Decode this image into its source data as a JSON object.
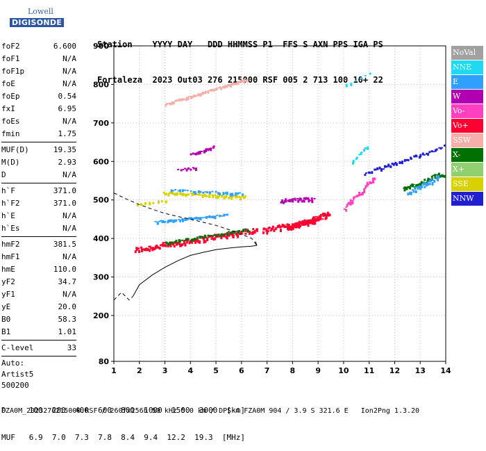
{
  "logo": {
    "line1": "Lowell",
    "line2": "DIGISONDE"
  },
  "header": {
    "line1": "Station    YYYY DAY   DDD HHMMSS P1  FFS S AXN PPS IGA PS",
    "line2": "Fortaleza  2023 Out03 276 215000 RSF 005 2 713 100 10+ 22"
  },
  "params": [
    {
      "k": "foF2",
      "v": "6.600"
    },
    {
      "k": "foF1",
      "v": "N/A"
    },
    {
      "k": "foF1p",
      "v": "N/A"
    },
    {
      "k": "foE",
      "v": "N/A"
    },
    {
      "k": "foEp",
      "v": "0.54"
    },
    {
      "k": "fxI",
      "v": "6.95"
    },
    {
      "k": "foEs",
      "v": "N/A"
    },
    {
      "k": "fmin",
      "v": "1.75"
    }
  ],
  "params2": [
    {
      "k": "MUF(D)",
      "v": "19.35"
    },
    {
      "k": "M(D)",
      "v": "2.93"
    },
    {
      "k": "D",
      "v": "N/A"
    }
  ],
  "params3": [
    {
      "k": "h`F",
      "v": "371.0"
    },
    {
      "k": "h`F2",
      "v": "371.0"
    },
    {
      "k": "h`E",
      "v": "N/A"
    },
    {
      "k": "h`Es",
      "v": "N/A"
    }
  ],
  "params4": [
    {
      "k": "hmF2",
      "v": "381.5"
    },
    {
      "k": "hmF1",
      "v": "N/A"
    },
    {
      "k": "hmE",
      "v": "110.0"
    },
    {
      "k": "yF2",
      "v": "34.7"
    },
    {
      "k": "yF1",
      "v": "N/A"
    },
    {
      "k": "yE",
      "v": "20.0"
    },
    {
      "k": "B0",
      "v": "58.3"
    },
    {
      "k": "B1",
      "v": "1.01"
    }
  ],
  "params5": [
    {
      "k": "C-level",
      "v": "33"
    }
  ],
  "auto": {
    "l1": "Auto:",
    "l2": "Artist5",
    "l3": "500200"
  },
  "legend": [
    {
      "label": "NoVal",
      "color": "#a0a0a0"
    },
    {
      "label": "NNE",
      "color": "#20d8f0"
    },
    {
      "label": "E",
      "color": "#30a0ff"
    },
    {
      "label": "W",
      "color": "#b000b0"
    },
    {
      "label": "Vo-",
      "color": "#ff40c0"
    },
    {
      "label": "Vo+",
      "color": "#ff0030"
    },
    {
      "label": "SSW",
      "color": "#f4b0a8"
    },
    {
      "label": "X-",
      "color": "#007000"
    },
    {
      "label": "X+",
      "color": "#90d070"
    },
    {
      "label": "SSE",
      "color": "#d8d000"
    },
    {
      "label": "NNW",
      "color": "#2020d0"
    }
  ],
  "footer": {
    "line1": "D     100  200  400  600  800  1000  1500  3000  [km]",
    "line2": "MUF   6.9  7.0  7.3  7.8  8.4  9.4  12.2  19.3  [MHz]",
    "line3": "FZA0M_2023276215000.RSF / 260fx256h 50 kHz 5.0 km / DPS-4 FZA0M 904 / 3.9 S 321.6 E   Ion2Png 1.3.20"
  },
  "chart_data": {
    "type": "scatter",
    "xlim": [
      1,
      14
    ],
    "ylim": [
      80,
      900
    ],
    "x_ticks": [
      1,
      2,
      3,
      4,
      5,
      6,
      7,
      8,
      9,
      10,
      11,
      12,
      13,
      14
    ],
    "y_ticks": [
      80,
      200,
      300,
      400,
      500,
      600,
      700,
      800,
      900
    ],
    "grid": true,
    "legend_position": "right",
    "profile": {
      "x": [
        1.75,
        2.0,
        2.5,
        3.0,
        3.5,
        4.0,
        4.5,
        5.0,
        5.5,
        6.0,
        6.4,
        6.6,
        6.55
      ],
      "y": [
        250,
        280,
        305,
        325,
        342,
        356,
        364,
        371,
        375,
        378,
        380,
        382,
        392
      ]
    },
    "profile_extrapolated": {
      "x": [
        1.0,
        1.3,
        1.6,
        1.75
      ],
      "y": [
        240,
        260,
        240,
        250
      ]
    },
    "dashed_upper": {
      "x": [
        1.0,
        1.5,
        2.0,
        2.5,
        3.0,
        3.5,
        4.0,
        4.5,
        5.0,
        5.5,
        6.0,
        6.4,
        6.6
      ],
      "y": [
        518,
        502,
        488,
        476,
        465,
        457,
        450,
        442,
        434,
        423,
        411,
        400,
        382
      ]
    },
    "traces": [
      {
        "series": "Vo+",
        "x": [
          1.8,
          6.6
        ],
        "y": [
          372,
          425
        ],
        "n": 140,
        "width": 7
      },
      {
        "series": "X-",
        "x": [
          3.0,
          6.2
        ],
        "y": [
          390,
          425
        ],
        "n": 40,
        "width": 3
      },
      {
        "series": "Vo+",
        "x": [
          6.8,
          9.0
        ],
        "y": [
          423,
          450
        ],
        "n": 60,
        "width": 6
      },
      {
        "series": "Vo+",
        "x": [
          7.8,
          9.4
        ],
        "y": [
          430,
          465
        ],
        "n": 70,
        "width": 7
      },
      {
        "series": "E",
        "x": [
          2.6,
          5.4
        ],
        "y": [
          445,
          463
        ],
        "n": 45,
        "width": 2
      },
      {
        "series": "SSE",
        "x": [
          2.9,
          6.1
        ],
        "y": [
          520,
          510
        ],
        "n": 55,
        "width": 3
      },
      {
        "series": "E",
        "x": [
          3.2,
          6.0
        ],
        "y": [
          528,
          518
        ],
        "n": 30,
        "width": 2
      },
      {
        "series": "SSW",
        "x": [
          3.0,
          6.2
        ],
        "y": [
          750,
          815
        ],
        "n": 60,
        "width": 2
      },
      {
        "series": "W",
        "x": [
          4.0,
          4.9
        ],
        "y": [
          620,
          640
        ],
        "n": 16,
        "width": 2
      },
      {
        "series": "W",
        "x": [
          3.5,
          4.2
        ],
        "y": [
          580,
          585
        ],
        "n": 10,
        "width": 2
      },
      {
        "series": "W",
        "x": [
          7.5,
          8.8
        ],
        "y": [
          500,
          505
        ],
        "n": 30,
        "width": 4
      },
      {
        "series": "Vo-",
        "x": [
          10.0,
          11.2
        ],
        "y": [
          480,
          560
        ],
        "n": 35,
        "width": 6
      },
      {
        "series": "NNW",
        "x": [
          10.8,
          13.9
        ],
        "y": [
          570,
          640
        ],
        "n": 45,
        "width": 4
      },
      {
        "series": "NNE",
        "x": [
          10.3,
          10.9
        ],
        "y": [
          600,
          640
        ],
        "n": 10,
        "width": 2
      },
      {
        "series": "NNE",
        "x": [
          10.1,
          11.0
        ],
        "y": [
          800,
          830
        ],
        "n": 6,
        "width": 2
      },
      {
        "series": "X-",
        "x": [
          12.3,
          13.9
        ],
        "y": [
          530,
          570
        ],
        "n": 40,
        "width": 6
      },
      {
        "series": "E",
        "x": [
          12.5,
          13.7
        ],
        "y": [
          520,
          560
        ],
        "n": 30,
        "width": 6
      },
      {
        "series": "SSE",
        "x": [
          1.9,
          3.0
        ],
        "y": [
          490,
          500
        ],
        "n": 8,
        "width": 2
      }
    ]
  }
}
